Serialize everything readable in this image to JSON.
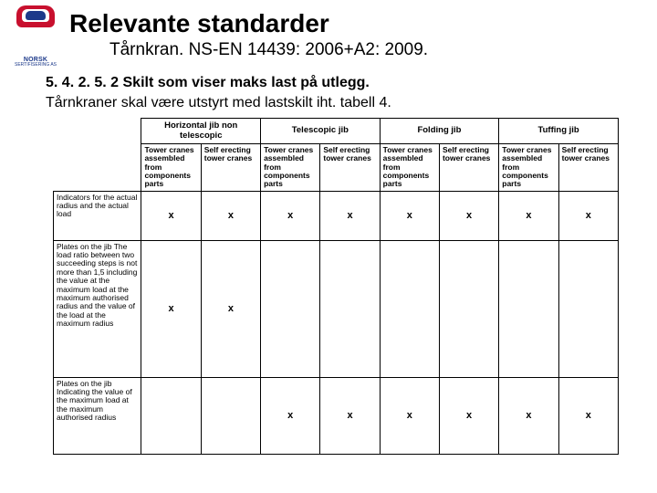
{
  "header": {
    "logo_brand": "NORSK",
    "logo_sub": "SERTIFISERING AS",
    "title": "Relevante standarder",
    "subtitle": "Tårnkran. NS-EN 14439: 2006+A2: 2009."
  },
  "body": {
    "line1_num": "5. 4. 2. 5. 2 ",
    "line1_rest": "Skilt som viser maks last på utlegg.",
    "line2": "Tårnkraner skal være utstyrt med lastskilt iht. tabell 4."
  },
  "table": {
    "groups": [
      "Horizontal jib non telescopic",
      "Telescopic jib",
      "Folding jib",
      "Tuffing jib"
    ],
    "subA": "Tower cranes assembled from components parts",
    "subB": "Self erecting tower cranes",
    "rows": [
      {
        "desc": "Indicators for the actual radius and the actual load",
        "marks": [
          "x",
          "x",
          "x",
          "x",
          "x",
          "x",
          "x",
          "x"
        ],
        "cls": "rowA"
      },
      {
        "desc": "Plates on the jib The load ratio between two succeeding steps is not more than 1,5 including the value at the maximum load at the maximum authorised radius and the value of the load at the maximum radius",
        "marks": [
          "x",
          "x",
          "",
          "",
          "",
          "",
          "",
          ""
        ],
        "cls": "rowB"
      },
      {
        "desc": "Plates on the jib Indicating the value of the maximum load at the maximum authorised radius",
        "marks": [
          "",
          "",
          "x",
          "x",
          "x",
          "x",
          "x",
          "x"
        ],
        "cls": "rowC"
      }
    ]
  },
  "styling": {
    "page_bg": "#ffffff",
    "text_color": "#000000",
    "border_color": "#000000",
    "title_fontsize": 28,
    "subtitle_fontsize": 19,
    "body_fontsize": 16,
    "table_font": 9,
    "logo_colors": {
      "red": "#c8102e",
      "blue": "#1d3a8a",
      "white": "#ffffff"
    }
  }
}
